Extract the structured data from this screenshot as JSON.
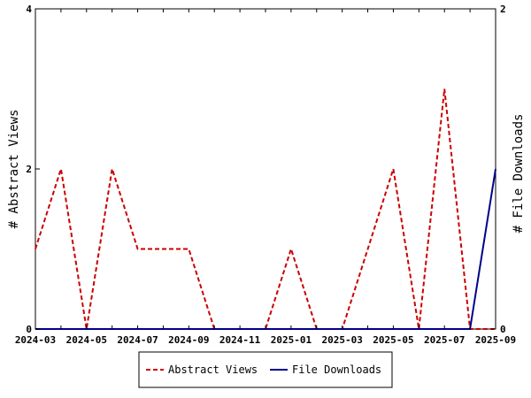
{
  "chart_data": {
    "type": "line",
    "title": "",
    "xlabel": "",
    "ylabel_left": "# Abstract Views",
    "ylabel_right": "# File Downloads",
    "x": [
      "2024-03",
      "2024-04",
      "2024-05",
      "2024-06",
      "2024-07",
      "2024-08",
      "2024-09",
      "2024-10",
      "2024-11",
      "2024-12",
      "2025-01",
      "2025-02",
      "2025-03",
      "2025-04",
      "2025-05",
      "2025-06",
      "2025-07",
      "2025-08",
      "2025-09"
    ],
    "x_tick_labels": [
      "2024-03",
      "2024-05",
      "2024-07",
      "2024-09",
      "2024-11",
      "2025-01",
      "2025-03",
      "2025-05",
      "2025-07",
      "2025-09"
    ],
    "ylim_left": [
      0,
      4
    ],
    "yticks_left": [
      "0",
      "2",
      "4"
    ],
    "ylim_right": [
      0,
      2
    ],
    "yticks_right": [
      "0",
      "2"
    ],
    "grid": false,
    "legend_position": "bottom",
    "series": [
      {
        "name": "Abstract Views",
        "axis": "left",
        "color": "#cc0000",
        "style": "dashed",
        "values": [
          1,
          2,
          0,
          2,
          1,
          1,
          1,
          0,
          0,
          0,
          1,
          0,
          0,
          1,
          2,
          0,
          3,
          0,
          0
        ]
      },
      {
        "name": "File Downloads",
        "axis": "right",
        "color": "#00008b",
        "style": "solid",
        "values": [
          0,
          0,
          0,
          0,
          0,
          0,
          0,
          0,
          0,
          0,
          0,
          0,
          0,
          0,
          0,
          0,
          0,
          0,
          1
        ]
      }
    ]
  }
}
